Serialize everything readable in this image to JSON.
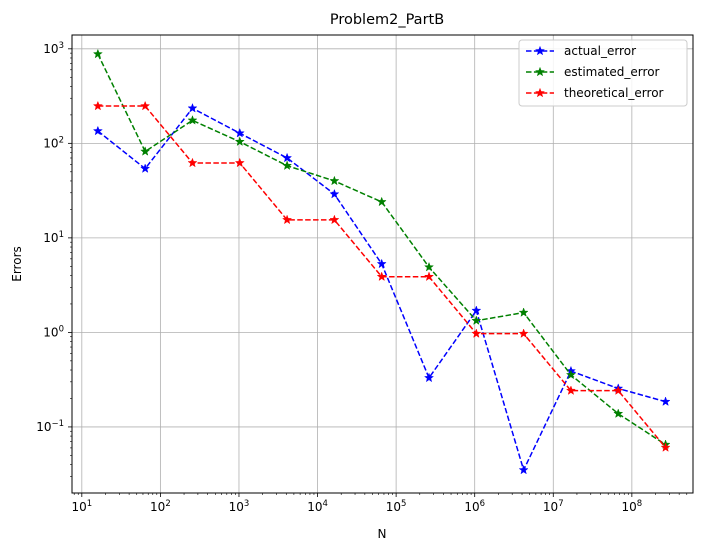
{
  "chart_data": {
    "type": "line",
    "title": "Problem2_PartB",
    "xlabel": "N",
    "ylabel": "Errors",
    "x_scale": "log",
    "y_scale": "log",
    "xlim": [
      7.5,
      600000000
    ],
    "ylim": [
      0.02,
      1400
    ],
    "grid": true,
    "legend_position": "top-right",
    "x_ticks": [
      {
        "value": 10,
        "base": "10",
        "exp": "1"
      },
      {
        "value": 100,
        "base": "10",
        "exp": "2"
      },
      {
        "value": 1000,
        "base": "10",
        "exp": "3"
      },
      {
        "value": 10000,
        "base": "10",
        "exp": "4"
      },
      {
        "value": 100000,
        "base": "10",
        "exp": "5"
      },
      {
        "value": 1000000,
        "base": "10",
        "exp": "6"
      },
      {
        "value": 10000000,
        "base": "10",
        "exp": "7"
      },
      {
        "value": 100000000,
        "base": "10",
        "exp": "8"
      }
    ],
    "y_ticks": [
      {
        "value": 0.1,
        "base": "10",
        "exp": "−1"
      },
      {
        "value": 1,
        "base": "10",
        "exp": "0"
      },
      {
        "value": 10,
        "base": "10",
        "exp": "1"
      },
      {
        "value": 100,
        "base": "10",
        "exp": "2"
      },
      {
        "value": 1000,
        "base": "10",
        "exp": "3"
      }
    ],
    "x": [
      16,
      64,
      256,
      1024,
      4096,
      16384,
      65536,
      262144,
      1048576,
      4194304,
      16777216,
      67108864,
      268435456
    ],
    "series": [
      {
        "name": "actual_error",
        "color": "#0000ff",
        "marker": "star",
        "values": [
          135,
          54,
          235,
          128,
          70,
          29,
          5.3,
          0.33,
          1.7,
          0.035,
          0.39,
          0.255,
          0.185
        ]
      },
      {
        "name": "estimated_error",
        "color": "#008000",
        "marker": "star",
        "values": [
          880,
          82,
          175,
          104,
          58,
          40,
          24,
          4.9,
          1.33,
          1.62,
          0.355,
          0.138,
          0.065
        ]
      },
      {
        "name": "theoretical_error",
        "color": "#ff0000",
        "marker": "star",
        "values": [
          248,
          248,
          62,
          62,
          15.5,
          15.5,
          3.88,
          3.88,
          0.97,
          0.97,
          0.242,
          0.242,
          0.0605
        ]
      }
    ]
  }
}
